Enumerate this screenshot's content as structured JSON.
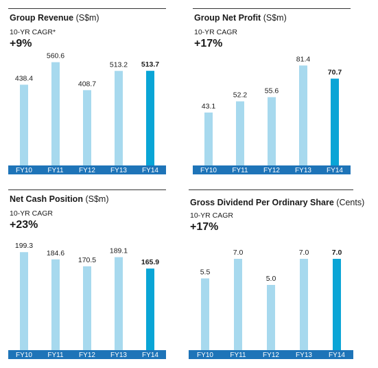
{
  "colors": {
    "bar": "#a7d9ee",
    "bar_highlight": "#0aa5d6",
    "axis_band": "#1e74b8",
    "axis_text": "#ffffff",
    "label_text": "#1a1a1a"
  },
  "panels": [
    {
      "title": "Group Revenue",
      "unit": "(S$m)",
      "cagr_label": "10-YR CAGR*",
      "cagr_value": "+9%"
    },
    {
      "title": "Group Net Profit",
      "unit": "(S$m)",
      "cagr_label": "10-YR CAGR",
      "cagr_value": "+17%"
    },
    {
      "title": "Net Cash Position",
      "unit": "(S$m)",
      "cagr_label": "10-YR CAGR",
      "cagr_value": "+23%"
    },
    {
      "title": "Gross Dividend Per Ordinary Share",
      "unit": "(Cents)",
      "cagr_label": "10-YR CAGR",
      "cagr_value": "+17%"
    }
  ],
  "chart_data": [
    {
      "type": "bar",
      "title": "Group Revenue (S$m)",
      "categories": [
        "FY10",
        "FY11",
        "FY12",
        "FY13",
        "FY14"
      ],
      "values": [
        438.4,
        560.6,
        408.7,
        513.2,
        513.7
      ],
      "labels": [
        "438.4",
        "560.6",
        "408.7",
        "513.2",
        "513.7"
      ],
      "highlight_index": 4,
      "ylim": [
        0,
        600
      ]
    },
    {
      "type": "bar",
      "title": "Group Net Profit (S$m)",
      "categories": [
        "FY10",
        "FY11",
        "FY12",
        "FY13",
        "FY14"
      ],
      "values": [
        43.1,
        52.2,
        55.6,
        81.4,
        70.7
      ],
      "labels": [
        "43.1",
        "52.2",
        "55.6",
        "81.4",
        "70.7"
      ],
      "highlight_index": 4,
      "ylim": [
        0,
        90
      ]
    },
    {
      "type": "bar",
      "title": "Net Cash Position (S$m)",
      "categories": [
        "FY10",
        "FY11",
        "FY12",
        "FY13",
        "FY14"
      ],
      "values": [
        199.3,
        184.6,
        170.5,
        189.1,
        165.9
      ],
      "labels": [
        "199.3",
        "184.6",
        "170.5",
        "189.1",
        "165.9"
      ],
      "highlight_index": 4,
      "ylim": [
        0,
        215
      ]
    },
    {
      "type": "bar",
      "title": "Gross Dividend Per Ordinary Share (Cents)",
      "categories": [
        "FY10",
        "FY11",
        "FY12",
        "FY13",
        "FY14"
      ],
      "values": [
        5.5,
        7.0,
        5.0,
        7.0,
        7.0
      ],
      "labels": [
        "5.5",
        "7.0",
        "5.0",
        "7.0",
        "7.0"
      ],
      "highlight_index": 4,
      "ylim": [
        0,
        8
      ]
    }
  ]
}
